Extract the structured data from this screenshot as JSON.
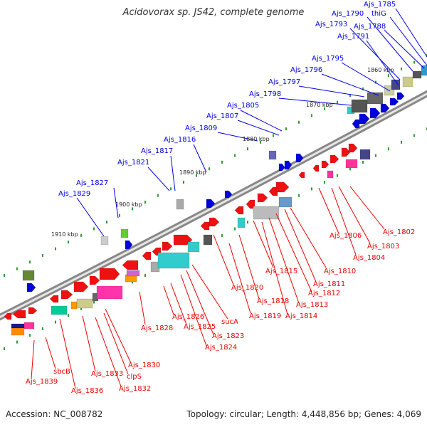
{
  "title": "Acidovorax sp. JS42, complete genome",
  "footer": {
    "accession": "Accession: NC_008782",
    "summary": "Topology: circular; Length: 4,448,856 bp; Genes: 4,069"
  },
  "colors": {
    "blue_label": "#0000ee",
    "red_label": "#ee0000",
    "backbone": "#999999"
  },
  "scale": [
    {
      "text": "1860 kbp",
      "key": "k1860"
    },
    {
      "text": "1870 kbp",
      "key": "k1870"
    },
    {
      "text": "1880 kbp",
      "key": "k1880"
    },
    {
      "text": "1890 kbp",
      "key": "k1890"
    },
    {
      "text": "1900 kbp",
      "key": "k1900"
    },
    {
      "text": "1910 kbp",
      "key": "k1910"
    }
  ],
  "labels_top": [
    "Ajs_1785",
    "Ajs_1790",
    "thiG",
    "Ajs_1793",
    "Ajs_1788",
    "Ajs_1791",
    "Ajs_1795",
    "Ajs_1796",
    "Ajs_1797",
    "Ajs_1798",
    "Ajs_1805",
    "Ajs_1807",
    "Ajs_1809",
    "Ajs_1816",
    "Ajs_1817",
    "Ajs_1821",
    "Ajs_1827",
    "Ajs_1829"
  ],
  "labels_bottom": [
    "Ajs_1802",
    "Ajs_1806",
    "Ajs_1803",
    "Ajs_1804",
    "Ajs_1810",
    "Ajs_1815",
    "Ajs_1811",
    "Ajs_1812",
    "Ajs_1813",
    "Ajs_1814",
    "Ajs_1820",
    "Ajs_1818",
    "Ajs_1819",
    "sucA",
    "Ajs_1826",
    "Ajs_1825",
    "Ajs_1823",
    "Ajs_1824",
    "Ajs_1828",
    "Ajs_1830",
    "clpS",
    "Ajs_1833",
    "Ajs_1832",
    "sbcB",
    "Ajs_1839",
    "Ajs_1836"
  ]
}
